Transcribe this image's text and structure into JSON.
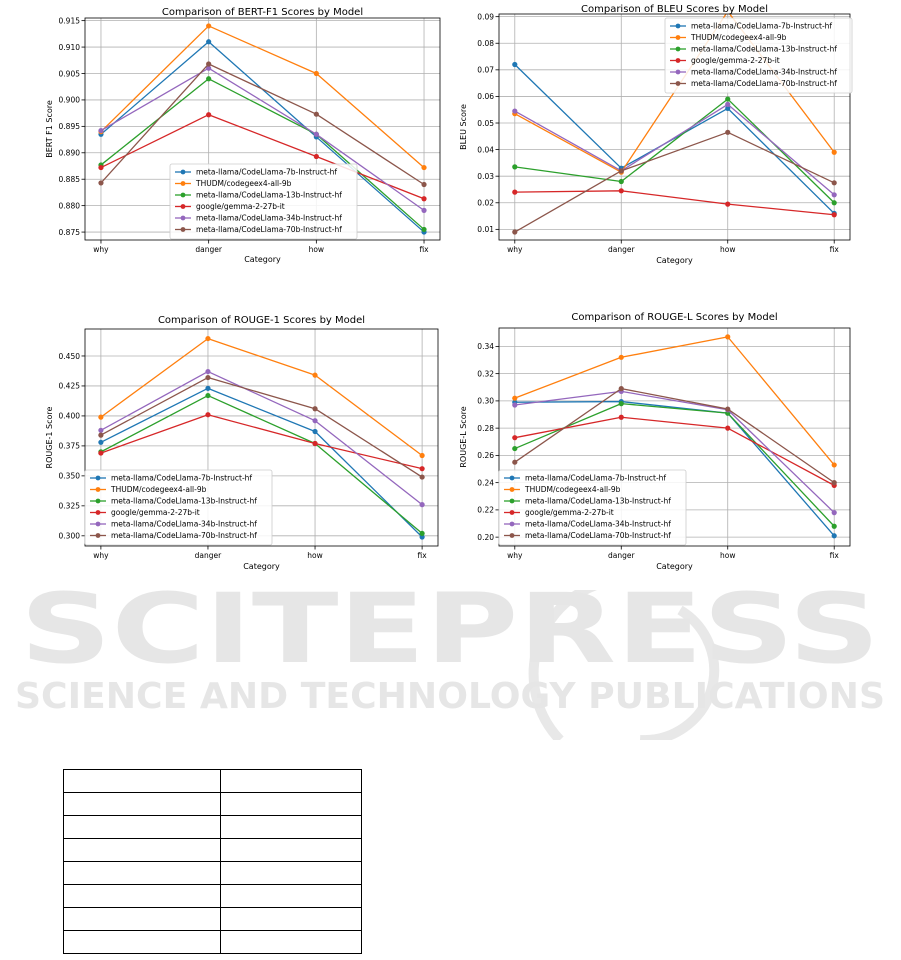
{
  "colors": [
    "#1f77b4",
    "#ff7f0e",
    "#2ca02c",
    "#d62728",
    "#9467bd",
    "#8c564b"
  ],
  "watermark": {
    "line1": "SCITEPRESS",
    "line2": "SCIENCE AND TECHNOLOGY PUBLICATIONS"
  },
  "table": {
    "rows": 8,
    "cols": 2,
    "cells": []
  },
  "chart_data": [
    {
      "type": "line",
      "title": "Comparison of BERT-F1 Scores by Model",
      "xlabel": "Category",
      "ylabel": "BERT F1 Score",
      "categories": [
        "why",
        "danger",
        "how",
        "fix"
      ],
      "ylim": [
        0.8735,
        0.9155
      ],
      "yticks": [
        "0.875",
        "0.880",
        "0.885",
        "0.890",
        "0.895",
        "0.900",
        "0.905",
        "0.910",
        "0.915"
      ],
      "grid": true,
      "legend": "lower-center",
      "series": [
        {
          "name": "meta-llama/CodeLlama-7b-Instruct-hf",
          "values": [
            0.8935,
            0.911,
            0.893,
            0.875
          ]
        },
        {
          "name": "THUDM/codegeex4-all-9b",
          "values": [
            0.894,
            0.914,
            0.905,
            0.8872
          ]
        },
        {
          "name": "meta-llama/CodeLlama-13b-Instruct-hf",
          "values": [
            0.8877,
            0.904,
            0.8935,
            0.8755
          ]
        },
        {
          "name": "google/gemma-2-27b-it",
          "values": [
            0.8872,
            0.8972,
            0.8893,
            0.8813
          ]
        },
        {
          "name": "meta-llama/CodeLlama-34b-Instruct-hf",
          "values": [
            0.8942,
            0.906,
            0.8935,
            0.8791
          ]
        },
        {
          "name": "meta-llama/CodeLlama-70b-Instruct-hf",
          "values": [
            0.8843,
            0.9068,
            0.8973,
            0.884
          ]
        }
      ]
    },
    {
      "type": "line",
      "title": "Comparison of BLEU Scores by Model",
      "xlabel": "Category",
      "ylabel": "BLEU Score",
      "categories": [
        "why",
        "danger",
        "how",
        "fix"
      ],
      "ylim": [
        0.006,
        0.091
      ],
      "yticks": [
        "0.01",
        "0.02",
        "0.03",
        "0.04",
        "0.05",
        "0.06",
        "0.07",
        "0.08",
        "0.09"
      ],
      "grid": true,
      "legend": "upper-right",
      "series": [
        {
          "name": "meta-llama/CodeLlama-7b-Instruct-hf",
          "values": [
            0.072,
            0.033,
            0.0555,
            0.016
          ]
        },
        {
          "name": "THUDM/codegeex4-all-9b",
          "values": [
            0.0535,
            0.0315,
            0.092,
            0.039
          ]
        },
        {
          "name": "meta-llama/CodeLlama-13b-Instruct-hf",
          "values": [
            0.0335,
            0.028,
            0.059,
            0.02
          ]
        },
        {
          "name": "google/gemma-2-27b-it",
          "values": [
            0.024,
            0.0245,
            0.0195,
            0.0155
          ]
        },
        {
          "name": "meta-llama/CodeLlama-34b-Instruct-hf",
          "values": [
            0.0545,
            0.032,
            0.057,
            0.023
          ]
        },
        {
          "name": "meta-llama/CodeLlama-70b-Instruct-hf",
          "values": [
            0.009,
            0.032,
            0.0465,
            0.0275
          ]
        }
      ]
    },
    {
      "type": "line",
      "title": "Comparison of ROUGE-1 Scores by Model",
      "xlabel": "Category",
      "ylabel": "ROUGE-1 Score",
      "categories": [
        "why",
        "danger",
        "how",
        "fix"
      ],
      "ylim": [
        0.2915,
        0.4725
      ],
      "yticks": [
        "0.300",
        "0.325",
        "0.350",
        "0.375",
        "0.400",
        "0.425",
        "0.450"
      ],
      "grid": true,
      "legend": "lower-left",
      "series": [
        {
          "name": "meta-llama/CodeLlama-7b-Instruct-hf",
          "values": [
            0.378,
            0.423,
            0.387,
            0.299
          ]
        },
        {
          "name": "THUDM/codegeex4-all-9b",
          "values": [
            0.399,
            0.4645,
            0.434,
            0.367
          ]
        },
        {
          "name": "meta-llama/CodeLlama-13b-Instruct-hf",
          "values": [
            0.37,
            0.417,
            0.377,
            0.302
          ]
        },
        {
          "name": "google/gemma-2-27b-it",
          "values": [
            0.369,
            0.401,
            0.377,
            0.356
          ]
        },
        {
          "name": "meta-llama/CodeLlama-34b-Instruct-hf",
          "values": [
            0.388,
            0.437,
            0.396,
            0.326
          ]
        },
        {
          "name": "meta-llama/CodeLlama-70b-Instruct-hf",
          "values": [
            0.384,
            0.432,
            0.406,
            0.349
          ]
        }
      ]
    },
    {
      "type": "line",
      "title": "Comparison of ROUGE-L Scores by Model",
      "xlabel": "Category",
      "ylabel": "ROUGE-L Score",
      "categories": [
        "why",
        "danger",
        "how",
        "fix"
      ],
      "ylim": [
        0.1935,
        0.3535
      ],
      "yticks": [
        "0.20",
        "0.22",
        "0.24",
        "0.26",
        "0.28",
        "0.30",
        "0.32",
        "0.34"
      ],
      "grid": true,
      "legend": "lower-left",
      "series": [
        {
          "name": "meta-llama/CodeLlama-7b-Instruct-hf",
          "values": [
            0.299,
            0.2995,
            0.291,
            0.201
          ]
        },
        {
          "name": "THUDM/codegeex4-all-9b",
          "values": [
            0.302,
            0.332,
            0.347,
            0.253
          ]
        },
        {
          "name": "meta-llama/CodeLlama-13b-Instruct-hf",
          "values": [
            0.265,
            0.298,
            0.291,
            0.208
          ]
        },
        {
          "name": "google/gemma-2-27b-it",
          "values": [
            0.273,
            0.288,
            0.28,
            0.238
          ]
        },
        {
          "name": "meta-llama/CodeLlama-34b-Instruct-hf",
          "values": [
            0.297,
            0.307,
            0.2935,
            0.218
          ]
        },
        {
          "name": "meta-llama/CodeLlama-70b-Instruct-hf",
          "values": [
            0.255,
            0.309,
            0.294,
            0.24
          ]
        }
      ]
    }
  ]
}
